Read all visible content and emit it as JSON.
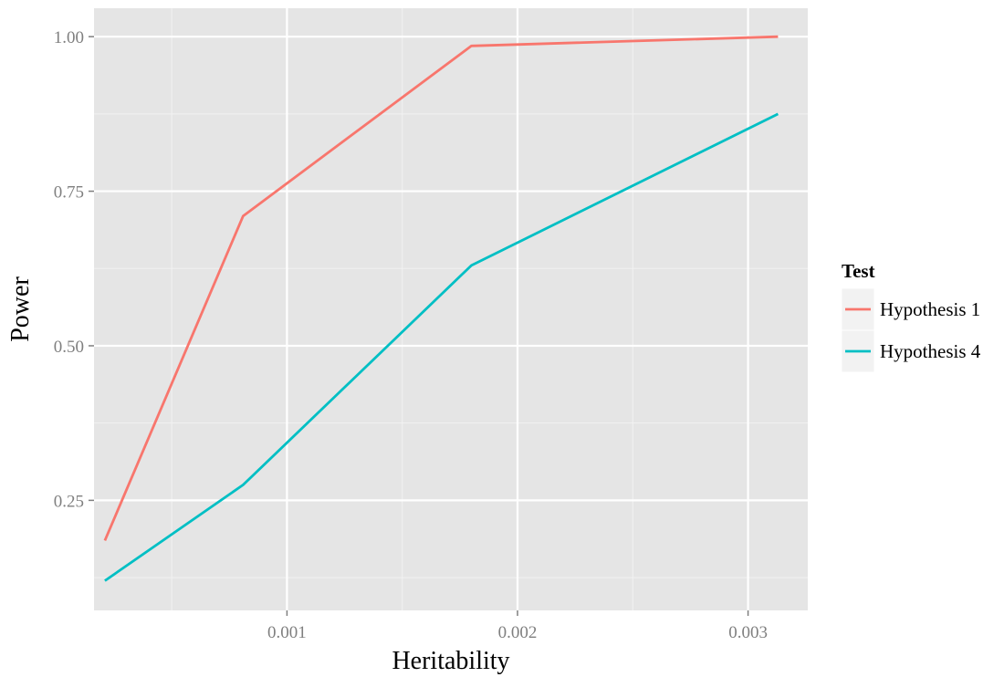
{
  "chart_data": {
    "type": "line",
    "xlabel": "Heritability",
    "ylabel": "Power",
    "xlim": [
      0.000163,
      0.003259
    ],
    "ylim": [
      0.072,
      1.046
    ],
    "x_ticks_major": [
      0.001,
      0.002,
      0.003
    ],
    "x_tick_labels": [
      "0.001",
      "0.002",
      "0.003"
    ],
    "x_ticks_minor": [
      0.0005,
      0.0015,
      0.0025
    ],
    "y_ticks_major": [
      0.25,
      0.5,
      0.75,
      1.0
    ],
    "y_tick_labels": [
      "0.25",
      "0.50",
      "0.75",
      "1.00"
    ],
    "y_ticks_minor": [
      0.125,
      0.375,
      0.625,
      0.875
    ],
    "grid": true,
    "panel_background": "#e5e5e5",
    "legend": {
      "title": "Test",
      "position": "right"
    },
    "series": [
      {
        "name": "Hypothesis 1",
        "color": "#f8766d",
        "x": [
          0.00021,
          0.00081,
          0.0018,
          0.00313
        ],
        "y": [
          0.185,
          0.71,
          0.985,
          1.0
        ]
      },
      {
        "name": "Hypothesis 4",
        "color": "#00bfc4",
        "x": [
          0.00021,
          0.00081,
          0.0018,
          0.00313
        ],
        "y": [
          0.12,
          0.275,
          0.63,
          0.875
        ]
      }
    ]
  }
}
